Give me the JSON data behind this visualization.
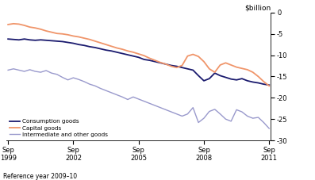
{
  "ylabel": "$billion",
  "xlabel_bottom": "Reference year 2009–10",
  "ylim": [
    -30,
    0
  ],
  "yticks": [
    0,
    -5,
    -10,
    -15,
    -20,
    -25,
    -30
  ],
  "x_start_year": 1999.67,
  "x_end_year": 2011.83,
  "xtick_years": [
    1999.75,
    2002.75,
    2005.75,
    2008.75,
    2011.75
  ],
  "xtick_labels": [
    "Sep\n1999",
    "Sep\n2002",
    "Sep\n2005",
    "Sep\n2008",
    "Sep\n2011"
  ],
  "legend": [
    {
      "label": "Consumption goods",
      "color": "#1a1a6e",
      "lw": 1.3
    },
    {
      "label": "Capital goods",
      "color": "#f0956a",
      "lw": 1.3
    },
    {
      "label": "Intermediate and other goods",
      "color": "#9999cc",
      "lw": 1.0
    }
  ],
  "consumption_goods": {
    "color": "#1a1a6e",
    "lw": 1.3,
    "data_x": [
      1999.75,
      2000.0,
      2000.25,
      2000.5,
      2000.75,
      2001.0,
      2001.25,
      2001.5,
      2001.75,
      2002.0,
      2002.25,
      2002.5,
      2002.75,
      2003.0,
      2003.25,
      2003.5,
      2003.75,
      2004.0,
      2004.25,
      2004.5,
      2004.75,
      2005.0,
      2005.25,
      2005.5,
      2005.75,
      2006.0,
      2006.25,
      2006.5,
      2006.75,
      2007.0,
      2007.25,
      2007.5,
      2007.75,
      2008.0,
      2008.25,
      2008.5,
      2008.75,
      2009.0,
      2009.25,
      2009.5,
      2009.75,
      2010.0,
      2010.25,
      2010.5,
      2010.75,
      2011.0,
      2011.25,
      2011.5,
      2011.75
    ],
    "data_y": [
      -6.2,
      -6.3,
      -6.4,
      -6.2,
      -6.4,
      -6.5,
      -6.4,
      -6.5,
      -6.6,
      -6.7,
      -6.8,
      -7.0,
      -7.2,
      -7.5,
      -7.7,
      -8.0,
      -8.2,
      -8.5,
      -8.8,
      -9.0,
      -9.3,
      -9.6,
      -9.9,
      -10.2,
      -10.5,
      -11.0,
      -11.2,
      -11.5,
      -11.8,
      -12.1,
      -12.4,
      -12.6,
      -12.9,
      -13.2,
      -13.5,
      -14.8,
      -16.0,
      -15.5,
      -14.2,
      -14.8,
      -15.2,
      -15.6,
      -15.8,
      -15.5,
      -16.0,
      -16.3,
      -16.5,
      -16.8,
      -17.0
    ]
  },
  "capital_goods": {
    "color": "#f0956a",
    "lw": 1.3,
    "data_x": [
      1999.75,
      2000.0,
      2000.25,
      2000.5,
      2000.75,
      2001.0,
      2001.25,
      2001.5,
      2001.75,
      2002.0,
      2002.25,
      2002.5,
      2002.75,
      2003.0,
      2003.25,
      2003.5,
      2003.75,
      2004.0,
      2004.25,
      2004.5,
      2004.75,
      2005.0,
      2005.25,
      2005.5,
      2005.75,
      2006.0,
      2006.25,
      2006.5,
      2006.75,
      2007.0,
      2007.25,
      2007.5,
      2007.75,
      2008.0,
      2008.25,
      2008.5,
      2008.75,
      2009.0,
      2009.25,
      2009.5,
      2009.75,
      2010.0,
      2010.25,
      2010.5,
      2010.75,
      2011.0,
      2011.25,
      2011.5,
      2011.75
    ],
    "data_y": [
      -2.8,
      -2.6,
      -2.7,
      -3.0,
      -3.4,
      -3.6,
      -3.9,
      -4.3,
      -4.6,
      -4.9,
      -5.0,
      -5.2,
      -5.5,
      -5.7,
      -6.0,
      -6.3,
      -6.7,
      -7.1,
      -7.5,
      -7.9,
      -8.3,
      -8.6,
      -9.0,
      -9.3,
      -9.7,
      -10.1,
      -10.7,
      -11.2,
      -11.7,
      -12.1,
      -12.6,
      -12.9,
      -12.4,
      -10.2,
      -9.8,
      -10.3,
      -11.5,
      -13.2,
      -14.0,
      -12.3,
      -11.8,
      -12.3,
      -12.8,
      -13.1,
      -13.4,
      -14.0,
      -15.0,
      -16.2,
      -17.2
    ]
  },
  "intermediate_goods": {
    "color": "#9999cc",
    "lw": 1.0,
    "data_x": [
      1999.75,
      2000.0,
      2000.25,
      2000.5,
      2000.75,
      2001.0,
      2001.25,
      2001.5,
      2001.75,
      2002.0,
      2002.25,
      2002.5,
      2002.75,
      2003.0,
      2003.25,
      2003.5,
      2003.75,
      2004.0,
      2004.25,
      2004.5,
      2004.75,
      2005.0,
      2005.25,
      2005.5,
      2005.75,
      2006.0,
      2006.25,
      2006.5,
      2006.75,
      2007.0,
      2007.25,
      2007.5,
      2007.75,
      2008.0,
      2008.25,
      2008.5,
      2008.75,
      2009.0,
      2009.25,
      2009.5,
      2009.75,
      2010.0,
      2010.25,
      2010.5,
      2010.75,
      2011.0,
      2011.25,
      2011.5,
      2011.75
    ],
    "data_y": [
      -13.5,
      -13.2,
      -13.5,
      -13.8,
      -13.4,
      -13.8,
      -14.0,
      -13.6,
      -14.2,
      -14.5,
      -15.2,
      -15.8,
      -15.3,
      -15.7,
      -16.2,
      -16.8,
      -17.2,
      -17.8,
      -18.3,
      -18.8,
      -19.3,
      -19.8,
      -20.4,
      -19.8,
      -20.3,
      -20.8,
      -21.3,
      -21.8,
      -22.3,
      -22.8,
      -23.3,
      -23.8,
      -24.3,
      -23.8,
      -22.3,
      -25.8,
      -24.8,
      -23.2,
      -22.7,
      -23.8,
      -25.0,
      -25.5,
      -22.8,
      -23.3,
      -24.3,
      -24.8,
      -24.6,
      -25.8,
      -27.2
    ]
  }
}
